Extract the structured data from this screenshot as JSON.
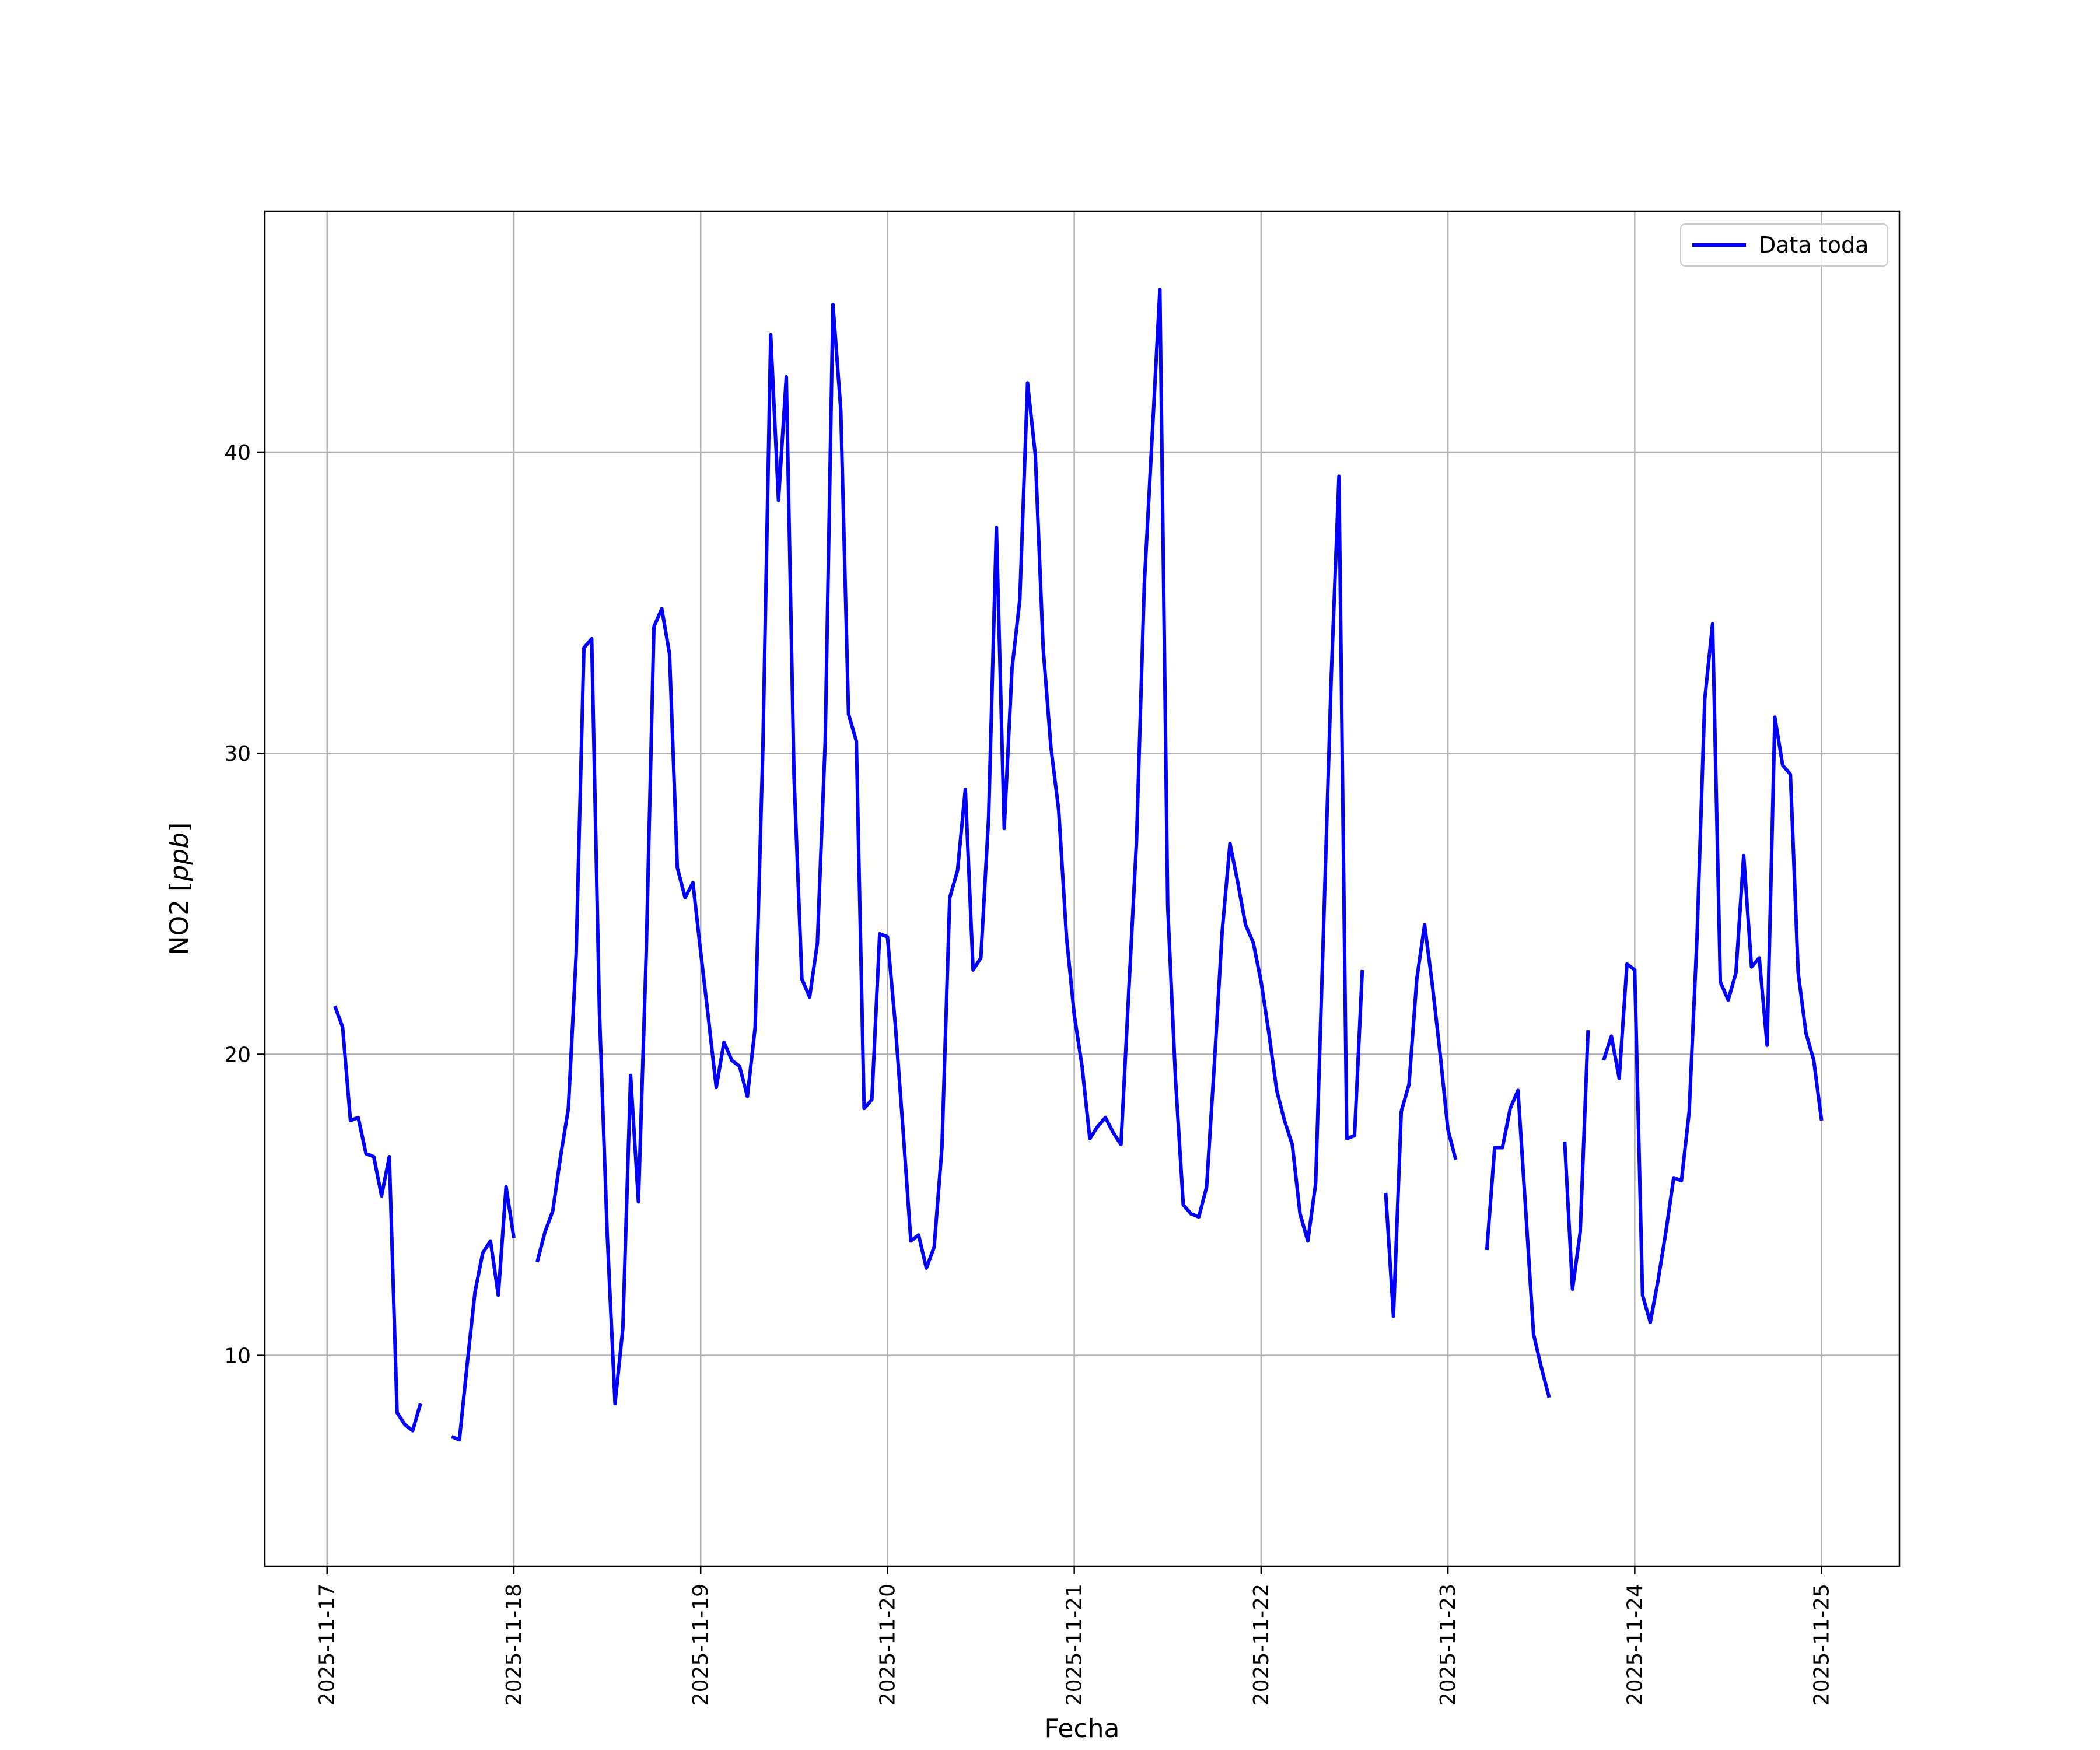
{
  "chart_data": {
    "type": "line",
    "xlabel": "Fecha",
    "ylabel": "NO2 [ppb]",
    "ylabel_parts": {
      "prefix": "NO2 [",
      "unit": "ppb",
      "suffix": "]"
    },
    "x_ticks": [
      "2025-11-17",
      "2025-11-18",
      "2025-11-19",
      "2025-11-20",
      "2025-11-21",
      "2025-11-22",
      "2025-11-23",
      "2025-11-24",
      "2025-11-25"
    ],
    "y_ticks": [
      10,
      20,
      30,
      40
    ],
    "xlim": [
      "2025-11-16 16:00",
      "2025-11-25 10:00"
    ],
    "ylim": [
      3.0,
      48.0
    ],
    "grid": true,
    "legend_position": "top-right",
    "series": [
      {
        "name": "Data toda",
        "color": "#0000ff",
        "segments": [
          [
            [
              "2025-11-17 01:00",
              21.6
            ],
            [
              "2025-11-17 02:00",
              20.9
            ],
            [
              "2025-11-17 03:00",
              17.8
            ],
            [
              "2025-11-17 04:00",
              17.9
            ],
            [
              "2025-11-17 05:00",
              16.7
            ],
            [
              "2025-11-17 06:00",
              16.6
            ],
            [
              "2025-11-17 07:00",
              15.3
            ],
            [
              "2025-11-17 08:00",
              16.6
            ],
            [
              "2025-11-17 09:00",
              8.1
            ],
            [
              "2025-11-17 10:00",
              7.7
            ],
            [
              "2025-11-17 11:00",
              7.5
            ],
            [
              "2025-11-17 12:00",
              8.4
            ]
          ],
          [
            [
              "2025-11-17 16:00",
              7.3
            ],
            [
              "2025-11-17 17:00",
              7.2
            ],
            [
              "2025-11-17 18:00",
              9.7
            ],
            [
              "2025-11-17 19:00",
              12.1
            ],
            [
              "2025-11-17 20:00",
              13.4
            ],
            [
              "2025-11-17 21:00",
              13.8
            ],
            [
              "2025-11-17 22:00",
              12.0
            ],
            [
              "2025-11-17 23:00",
              15.6
            ],
            [
              "2025-11-18 00:00",
              13.9
            ]
          ],
          [
            [
              "2025-11-18 03:00",
              13.1
            ],
            [
              "2025-11-18 04:00",
              14.1
            ],
            [
              "2025-11-18 05:00",
              14.8
            ],
            [
              "2025-11-18 06:00",
              16.6
            ],
            [
              "2025-11-18 07:00",
              18.2
            ],
            [
              "2025-11-18 08:00",
              23.3
            ],
            [
              "2025-11-18 09:00",
              33.5
            ],
            [
              "2025-11-18 10:00",
              33.8
            ],
            [
              "2025-11-18 11:00",
              21.4
            ],
            [
              "2025-11-18 12:00",
              14.0
            ],
            [
              "2025-11-18 13:00",
              8.4
            ],
            [
              "2025-11-18 14:00",
              10.9
            ],
            [
              "2025-11-18 15:00",
              19.3
            ],
            [
              "2025-11-18 16:00",
              15.1
            ],
            [
              "2025-11-18 17:00",
              23.3
            ],
            [
              "2025-11-18 18:00",
              34.2
            ],
            [
              "2025-11-18 19:00",
              34.8
            ],
            [
              "2025-11-18 20:00",
              33.3
            ],
            [
              "2025-11-18 21:00",
              26.2
            ],
            [
              "2025-11-18 22:00",
              25.2
            ],
            [
              "2025-11-18 23:00",
              25.7
            ],
            [
              "2025-11-19 00:00",
              23.4
            ],
            [
              "2025-11-19 01:00",
              21.2
            ],
            [
              "2025-11-19 02:00",
              18.9
            ],
            [
              "2025-11-19 03:00",
              20.4
            ],
            [
              "2025-11-19 04:00",
              19.8
            ],
            [
              "2025-11-19 05:00",
              19.6
            ],
            [
              "2025-11-19 06:00",
              18.6
            ],
            [
              "2025-11-19 07:00",
              20.9
            ],
            [
              "2025-11-19 08:00",
              30.2
            ],
            [
              "2025-11-19 09:00",
              43.9
            ],
            [
              "2025-11-19 10:00",
              38.4
            ],
            [
              "2025-11-19 11:00",
              42.5
            ],
            [
              "2025-11-19 12:00",
              29.2
            ],
            [
              "2025-11-19 13:00",
              22.5
            ],
            [
              "2025-11-19 14:00",
              21.9
            ],
            [
              "2025-11-19 15:00",
              23.7
            ],
            [
              "2025-11-19 16:00",
              30.4
            ],
            [
              "2025-11-19 17:00",
              44.9
            ],
            [
              "2025-11-19 18:00",
              41.4
            ],
            [
              "2025-11-19 19:00",
              31.3
            ],
            [
              "2025-11-19 20:00",
              30.4
            ],
            [
              "2025-11-19 21:00",
              18.2
            ],
            [
              "2025-11-19 22:00",
              18.5
            ],
            [
              "2025-11-19 23:00",
              24.0
            ],
            [
              "2025-11-20 00:00",
              23.9
            ],
            [
              "2025-11-20 01:00",
              21.0
            ],
            [
              "2025-11-20 02:00",
              17.5
            ],
            [
              "2025-11-20 03:00",
              13.8
            ],
            [
              "2025-11-20 04:00",
              14.0
            ],
            [
              "2025-11-20 05:00",
              12.9
            ],
            [
              "2025-11-20 06:00",
              13.6
            ],
            [
              "2025-11-20 07:00",
              16.9
            ],
            [
              "2025-11-20 08:00",
              25.2
            ],
            [
              "2025-11-20 09:00",
              26.1
            ],
            [
              "2025-11-20 10:00",
              28.8
            ],
            [
              "2025-11-20 11:00",
              22.8
            ],
            [
              "2025-11-20 12:00",
              23.2
            ],
            [
              "2025-11-20 13:00",
              27.9
            ],
            [
              "2025-11-20 14:00",
              37.5
            ],
            [
              "2025-11-20 15:00",
              27.5
            ],
            [
              "2025-11-20 16:00",
              32.8
            ],
            [
              "2025-11-20 17:00",
              35.1
            ],
            [
              "2025-11-20 18:00",
              42.3
            ],
            [
              "2025-11-20 19:00",
              39.9
            ],
            [
              "2025-11-20 20:00",
              33.5
            ],
            [
              "2025-11-20 21:00",
              30.2
            ],
            [
              "2025-11-20 22:00",
              28.1
            ],
            [
              "2025-11-20 23:00",
              23.9
            ],
            [
              "2025-11-21 00:00",
              21.3
            ],
            [
              "2025-11-21 01:00",
              19.6
            ],
            [
              "2025-11-21 02:00",
              17.2
            ],
            [
              "2025-11-21 03:00",
              17.6
            ],
            [
              "2025-11-21 04:00",
              17.9
            ],
            [
              "2025-11-21 05:00",
              17.4
            ],
            [
              "2025-11-21 06:00",
              17.0
            ],
            [
              "2025-11-21 07:00",
              22.1
            ],
            [
              "2025-11-21 08:00",
              27.1
            ],
            [
              "2025-11-21 09:00",
              35.6
            ],
            [
              "2025-11-21 10:00",
              40.5
            ],
            [
              "2025-11-21 11:00",
              45.4
            ],
            [
              "2025-11-21 12:00",
              24.9
            ],
            [
              "2025-11-21 13:00",
              19.2
            ],
            [
              "2025-11-21 14:00",
              15.0
            ],
            [
              "2025-11-21 15:00",
              14.7
            ],
            [
              "2025-11-21 16:00",
              14.6
            ],
            [
              "2025-11-21 17:00",
              15.6
            ],
            [
              "2025-11-21 18:00",
              19.7
            ],
            [
              "2025-11-21 19:00",
              24.1
            ],
            [
              "2025-11-21 20:00",
              27.0
            ],
            [
              "2025-11-21 21:00",
              25.7
            ],
            [
              "2025-11-21 22:00",
              24.3
            ],
            [
              "2025-11-21 23:00",
              23.7
            ],
            [
              "2025-11-22 00:00",
              22.4
            ],
            [
              "2025-11-22 01:00",
              20.7
            ],
            [
              "2025-11-22 02:00",
              18.8
            ],
            [
              "2025-11-22 03:00",
              17.8
            ],
            [
              "2025-11-22 04:00",
              17.0
            ],
            [
              "2025-11-22 05:00",
              14.7
            ],
            [
              "2025-11-22 06:00",
              13.8
            ],
            [
              "2025-11-22 07:00",
              15.7
            ],
            [
              "2025-11-22 08:00",
              24.0
            ],
            [
              "2025-11-22 09:00",
              32.5
            ],
            [
              "2025-11-22 10:00",
              39.2
            ],
            [
              "2025-11-22 11:00",
              17.2
            ],
            [
              "2025-11-22 12:00",
              17.3
            ],
            [
              "2025-11-22 13:00",
              22.8
            ]
          ],
          [
            [
              "2025-11-22 16:00",
              15.4
            ],
            [
              "2025-11-22 17:00",
              11.3
            ],
            [
              "2025-11-22 18:00",
              18.1
            ],
            [
              "2025-11-22 19:00",
              19.0
            ],
            [
              "2025-11-22 20:00",
              22.5
            ],
            [
              "2025-11-22 21:00",
              24.3
            ],
            [
              "2025-11-22 22:00",
              22.3
            ],
            [
              "2025-11-22 23:00",
              20.0
            ],
            [
              "2025-11-23 00:00",
              17.5
            ],
            [
              "2025-11-23 01:00",
              16.5
            ]
          ],
          [
            [
              "2025-11-23 05:00",
              13.5
            ],
            [
              "2025-11-23 06:00",
              16.9
            ],
            [
              "2025-11-23 07:00",
              16.9
            ],
            [
              "2025-11-23 08:00",
              18.2
            ],
            [
              "2025-11-23 09:00",
              18.8
            ],
            [
              "2025-11-23 10:00",
              14.8
            ],
            [
              "2025-11-23 11:00",
              10.7
            ],
            [
              "2025-11-23 12:00",
              9.6
            ],
            [
              "2025-11-23 13:00",
              8.6
            ]
          ],
          [
            [
              "2025-11-23 15:00",
              17.1
            ],
            [
              "2025-11-23 16:00",
              12.2
            ],
            [
              "2025-11-23 17:00",
              14.1
            ],
            [
              "2025-11-23 18:00",
              20.8
            ]
          ],
          [
            [
              "2025-11-23 20:00",
              19.8
            ],
            [
              "2025-11-23 21:00",
              20.6
            ],
            [
              "2025-11-23 22:00",
              19.2
            ],
            [
              "2025-11-23 23:00",
              23.0
            ],
            [
              "2025-11-24 00:00",
              22.8
            ],
            [
              "2025-11-24 01:00",
              12.0
            ],
            [
              "2025-11-24 02:00",
              11.1
            ],
            [
              "2025-11-24 03:00",
              12.5
            ],
            [
              "2025-11-24 04:00",
              14.1
            ],
            [
              "2025-11-24 05:00",
              15.9
            ],
            [
              "2025-11-24 06:00",
              15.8
            ],
            [
              "2025-11-24 07:00",
              18.1
            ],
            [
              "2025-11-24 08:00",
              23.9
            ],
            [
              "2025-11-24 09:00",
              31.8
            ],
            [
              "2025-11-24 10:00",
              34.3
            ],
            [
              "2025-11-24 11:00",
              22.4
            ],
            [
              "2025-11-24 12:00",
              21.8
            ],
            [
              "2025-11-24 13:00",
              22.7
            ],
            [
              "2025-11-24 14:00",
              26.6
            ],
            [
              "2025-11-24 15:00",
              22.9
            ],
            [
              "2025-11-24 16:00",
              23.2
            ],
            [
              "2025-11-24 17:00",
              20.3
            ],
            [
              "2025-11-24 18:00",
              31.2
            ],
            [
              "2025-11-24 19:00",
              29.6
            ],
            [
              "2025-11-24 20:00",
              29.3
            ],
            [
              "2025-11-24 21:00",
              22.7
            ],
            [
              "2025-11-24 22:00",
              20.7
            ],
            [
              "2025-11-24 23:00",
              19.8
            ],
            [
              "2025-11-25 00:00",
              17.8
            ]
          ]
        ]
      }
    ]
  }
}
